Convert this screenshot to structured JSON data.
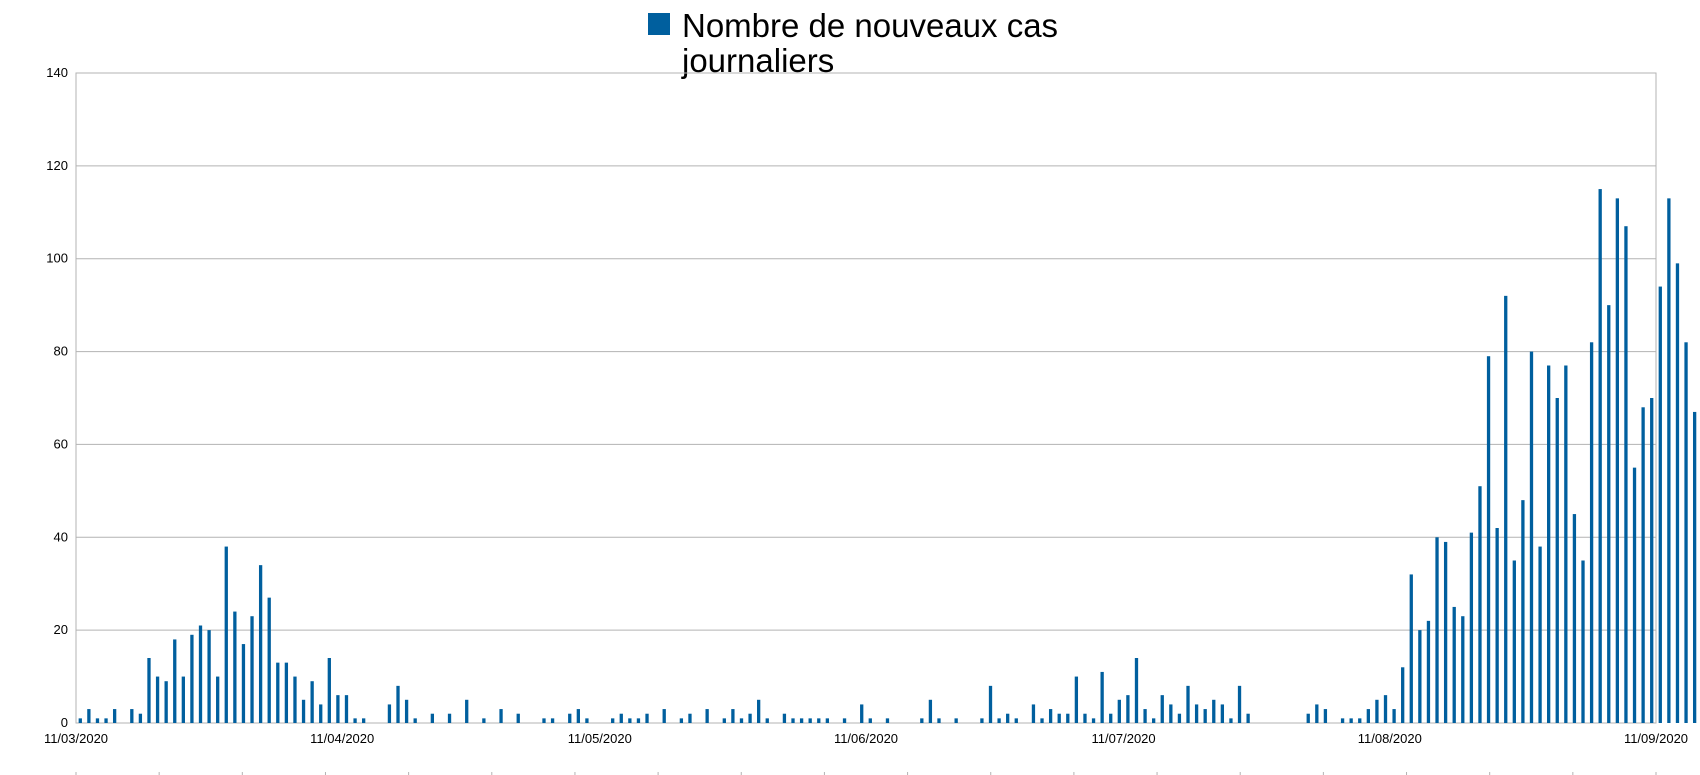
{
  "chart_data": {
    "type": "bar",
    "title": "",
    "xlabel": "",
    "ylabel": "",
    "ylim": [
      0,
      140
    ],
    "y_ticks": [
      "0",
      "20",
      "40",
      "60",
      "80",
      "100",
      "120",
      "140"
    ],
    "x_tick_labels": [
      "11/03/2020",
      "11/04/2020",
      "11/05/2020",
      "11/06/2020",
      "11/07/2020",
      "11/08/2020",
      "11/09/2020"
    ],
    "start_date": "11/03/2020",
    "grid": true,
    "legend_position": "top-center",
    "series": [
      {
        "name": "Nombre de nouveaux cas journaliers",
        "color": "#005f9e",
        "values": [
          1,
          3,
          1,
          1,
          3,
          0,
          3,
          2,
          14,
          10,
          9,
          18,
          10,
          19,
          21,
          20,
          10,
          38,
          24,
          17,
          23,
          34,
          27,
          13,
          13,
          10,
          5,
          9,
          4,
          14,
          6,
          6,
          1,
          1,
          0,
          0,
          4,
          8,
          5,
          1,
          0,
          2,
          0,
          2,
          0,
          5,
          0,
          1,
          0,
          3,
          0,
          2,
          0,
          0,
          1,
          1,
          0,
          2,
          3,
          1,
          0,
          0,
          1,
          2,
          1,
          1,
          2,
          0,
          3,
          0,
          1,
          2,
          0,
          3,
          0,
          1,
          3,
          1,
          2,
          5,
          1,
          0,
          2,
          1,
          1,
          1,
          1,
          1,
          0,
          1,
          0,
          4,
          1,
          0,
          1,
          0,
          0,
          0,
          1,
          5,
          1,
          0,
          1,
          0,
          0,
          1,
          8,
          1,
          2,
          1,
          0,
          4,
          1,
          3,
          2,
          2,
          10,
          2,
          1,
          11,
          2,
          5,
          6,
          14,
          3,
          1,
          6,
          4,
          2,
          8,
          4,
          3,
          5,
          4,
          1,
          8,
          2,
          0,
          0,
          0,
          0,
          0,
          0,
          2,
          4,
          3,
          0,
          1,
          1,
          1,
          3,
          5,
          6,
          3,
          12,
          32,
          20,
          22,
          40,
          39,
          25,
          23,
          41,
          51,
          79,
          42,
          92,
          35,
          48,
          80,
          38,
          77,
          70,
          77,
          45,
          35,
          82,
          115,
          90,
          113,
          107,
          55,
          68,
          70,
          94,
          113,
          99,
          82,
          67
        ]
      }
    ]
  }
}
